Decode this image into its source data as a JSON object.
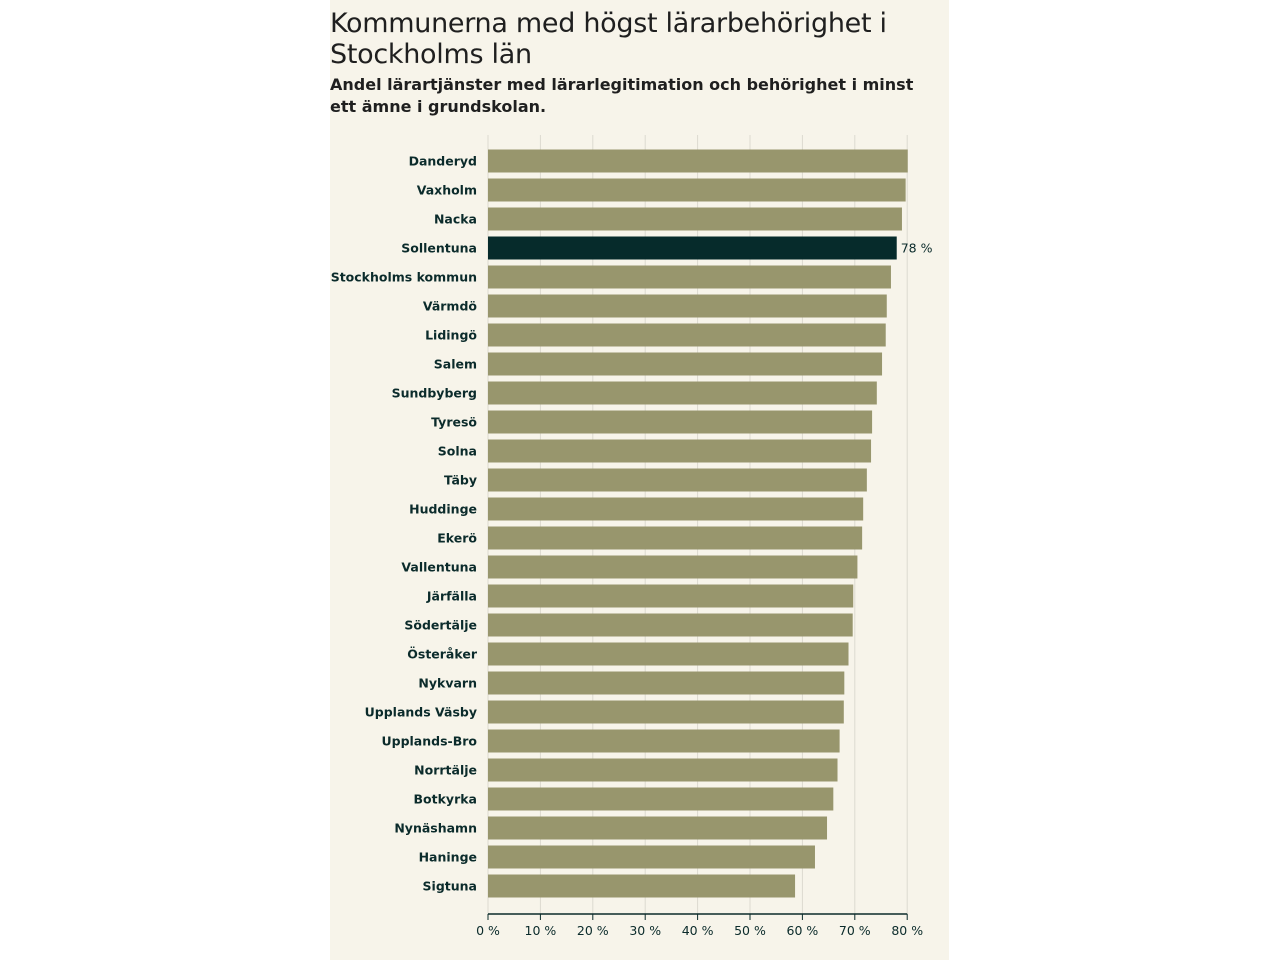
{
  "header": {
    "title": "Kommunerna med högst lärarbehörighet i Stockholms län",
    "subtitle": "Andel lärartjänster med lärarlegitimation och behörighet i minst ett ämne i grundskolan."
  },
  "colors": {
    "bar": "#98966d",
    "highlight": "#062b2b",
    "background": "#f7f4ea",
    "grid": "#dcdad0",
    "text": "#0b2b2b"
  },
  "chart_data": {
    "type": "bar",
    "orientation": "horizontal",
    "title": "Kommunerna med högst lärarbehörighet i Stockholms län",
    "subtitle": "Andel lärartjänster med lärarlegitimation och behörighet i minst ett ämne i grundskolan.",
    "categories": [
      "Danderyd",
      "Vaxholm",
      "Nacka",
      "Sollentuna",
      "Stockholms kommun",
      "Värmdö",
      "Lidingö",
      "Salem",
      "Sundbyberg",
      "Tyresö",
      "Solna",
      "Täby",
      "Huddinge",
      "Ekerö",
      "Vallentuna",
      "Järfälla",
      "Södertälje",
      "Österåker",
      "Nykvarn",
      "Upplands Väsby",
      "Upplands-Bro",
      "Norrtälje",
      "Botkyrka",
      "Nynäshamn",
      "Haninge",
      "Sigtuna"
    ],
    "values": [
      80.1,
      79.7,
      79.0,
      78.0,
      76.9,
      76.1,
      75.9,
      75.2,
      74.2,
      73.3,
      73.1,
      72.3,
      71.6,
      71.4,
      70.5,
      69.7,
      69.6,
      68.8,
      68.0,
      67.9,
      67.1,
      66.7,
      65.9,
      64.7,
      62.4,
      58.6
    ],
    "highlight": "Sollentuna",
    "data_labels": {
      "Sollentuna": "78 %"
    },
    "xlim": [
      0,
      80
    ],
    "xticks": [
      0,
      10,
      20,
      30,
      40,
      50,
      60,
      70,
      80
    ],
    "tick_labels": [
      "0 %",
      "10 %",
      "20 %",
      "30 %",
      "40 %",
      "50 %",
      "60 %",
      "70 %",
      "80 %"
    ],
    "xlabel": "",
    "ylabel": "",
    "grid": true
  }
}
